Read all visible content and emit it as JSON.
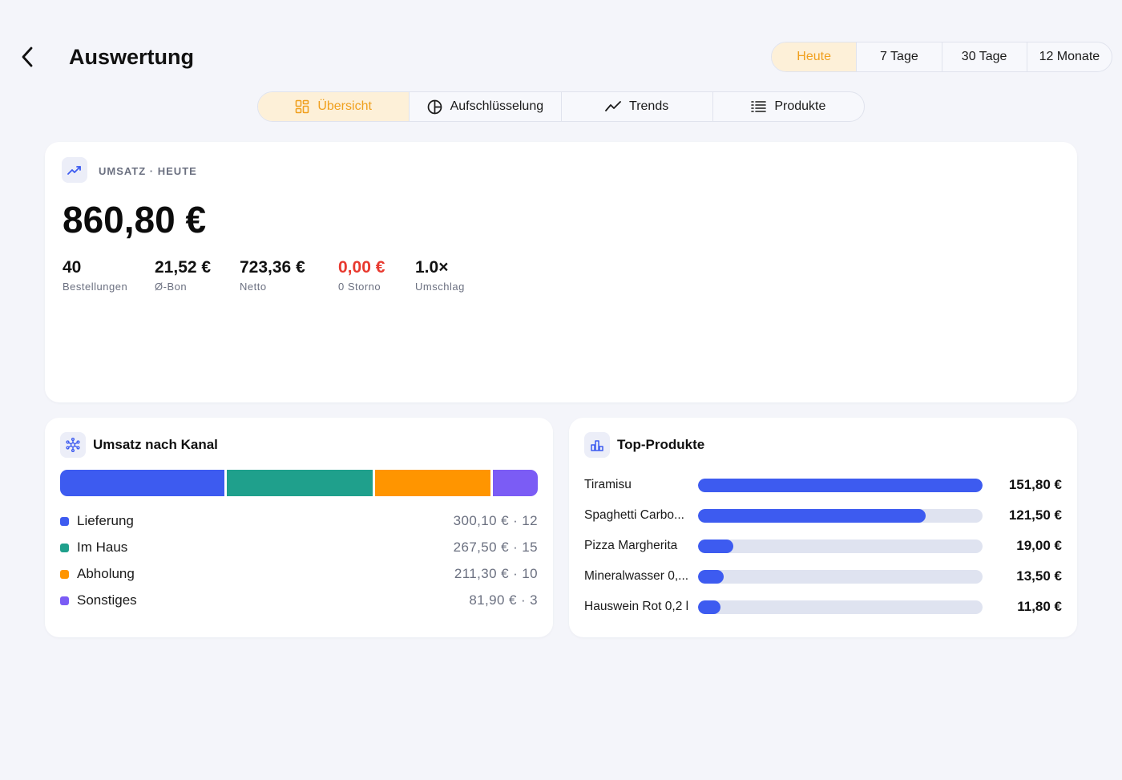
{
  "header": {
    "title": "Auswertung",
    "periods": [
      {
        "label": "Heute",
        "active": true
      },
      {
        "label": "7 Tage",
        "active": false
      },
      {
        "label": "30 Tage",
        "active": false
      },
      {
        "label": "12 Monate",
        "active": false
      }
    ]
  },
  "tabs": [
    {
      "label": "Übersicht",
      "icon": "grid-icon",
      "active": true
    },
    {
      "label": "Aufschlüsselung",
      "icon": "pie-icon",
      "active": false
    },
    {
      "label": "Trends",
      "icon": "trend-line-icon",
      "active": false
    },
    {
      "label": "Produkte",
      "icon": "list-icon",
      "active": false
    }
  ],
  "summary": {
    "label": "UMSATZ · HEUTE",
    "total": "860,80 €",
    "kpis": [
      {
        "value": "40",
        "label": "Bestellungen",
        "negative": false
      },
      {
        "value": "21,52 €",
        "label": "Ø-Bon",
        "negative": false
      },
      {
        "value": "723,36 €",
        "label": "Netto",
        "negative": false
      },
      {
        "value": "0,00 €",
        "label": "0 Storno",
        "negative": true
      },
      {
        "value": "1.0×",
        "label": "Umschlag",
        "negative": false
      }
    ]
  },
  "channels": {
    "title": "Umsatz nach Kanal",
    "items": [
      {
        "name": "Lieferung",
        "amount": 300.1,
        "display": "300,10 € · 12",
        "color": "#3d5bf0"
      },
      {
        "name": "Im Haus",
        "amount": 267.5,
        "display": "267,50 € · 15",
        "color": "#1fa08c"
      },
      {
        "name": "Abholung",
        "amount": 211.3,
        "display": "211,30 € · 10",
        "color": "#ff9500"
      },
      {
        "name": "Sonstiges",
        "amount": 81.9,
        "display": "81,90 € · 3",
        "color": "#7b5cf5"
      }
    ]
  },
  "top_products": {
    "title": "Top-Produkte",
    "items": [
      {
        "name": "Tiramisu",
        "amount": 151.8,
        "display": "151,80 €"
      },
      {
        "name": "Spaghetti Carbo...",
        "amount": 121.5,
        "display": "121,50 €"
      },
      {
        "name": "Pizza Margherita",
        "amount": 19.0,
        "display": "19,00 €"
      },
      {
        "name": "Mineralwasser 0,...",
        "amount": 13.5,
        "display": "13,50 €"
      },
      {
        "name": "Hauswein Rot 0,2 l",
        "amount": 11.8,
        "display": "11,80 €"
      }
    ]
  }
}
